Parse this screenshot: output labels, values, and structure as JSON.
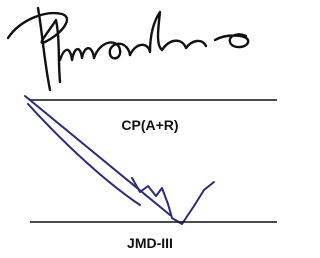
{
  "signatures": [
    {
      "label": "CP(A+R)"
    },
    {
      "label": "JMD-III"
    }
  ]
}
